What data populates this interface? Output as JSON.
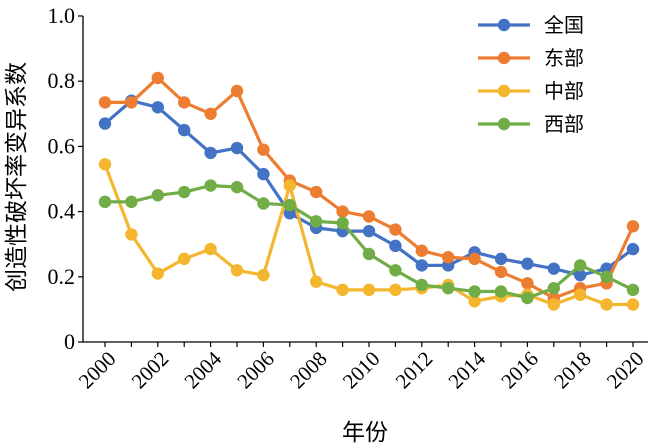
{
  "chart_data": {
    "type": "line",
    "xlabel": "年份",
    "ylabel": "创造性破坏率变异系数",
    "x": [
      2000,
      2001,
      2002,
      2003,
      2004,
      2005,
      2006,
      2007,
      2008,
      2009,
      2010,
      2011,
      2012,
      2013,
      2014,
      2015,
      2016,
      2017,
      2018,
      2019,
      2020
    ],
    "xlim": [
      2000,
      2020
    ],
    "xticks": [
      "2000",
      "2002",
      "2004",
      "2006",
      "2008",
      "2010",
      "2012",
      "2014",
      "2016",
      "2018",
      "2020"
    ],
    "ylim": [
      0,
      1.0
    ],
    "yticks": [
      "0",
      "0.2",
      "0.4",
      "0.6",
      "0.8",
      "1.0"
    ],
    "grid": false,
    "legend_position": "top-right",
    "series": [
      {
        "name": "全国",
        "color": "#4472C4",
        "values": [
          0.67,
          0.74,
          0.72,
          0.65,
          0.58,
          0.595,
          0.515,
          0.395,
          0.35,
          0.34,
          0.34,
          0.295,
          0.235,
          0.235,
          0.275,
          0.255,
          0.24,
          0.225,
          0.205,
          0.225,
          0.285
        ]
      },
      {
        "name": "东部",
        "color": "#ED7D31",
        "values": [
          0.735,
          0.735,
          0.81,
          0.735,
          0.7,
          0.77,
          0.59,
          0.495,
          0.46,
          0.4,
          0.385,
          0.345,
          0.28,
          0.26,
          0.255,
          0.215,
          0.18,
          0.135,
          0.165,
          0.18,
          0.355
        ]
      },
      {
        "name": "中部",
        "color": "#F3B62E",
        "values": [
          0.545,
          0.33,
          0.21,
          0.255,
          0.285,
          0.22,
          0.205,
          0.48,
          0.185,
          0.16,
          0.16,
          0.16,
          0.165,
          0.175,
          0.125,
          0.14,
          0.145,
          0.115,
          0.145,
          0.115,
          0.115
        ]
      },
      {
        "name": "西部",
        "color": "#70AD47",
        "values": [
          0.43,
          0.43,
          0.45,
          0.46,
          0.48,
          0.475,
          0.425,
          0.42,
          0.37,
          0.365,
          0.27,
          0.22,
          0.175,
          0.165,
          0.155,
          0.155,
          0.135,
          0.165,
          0.235,
          0.2,
          0.16
        ]
      }
    ]
  }
}
